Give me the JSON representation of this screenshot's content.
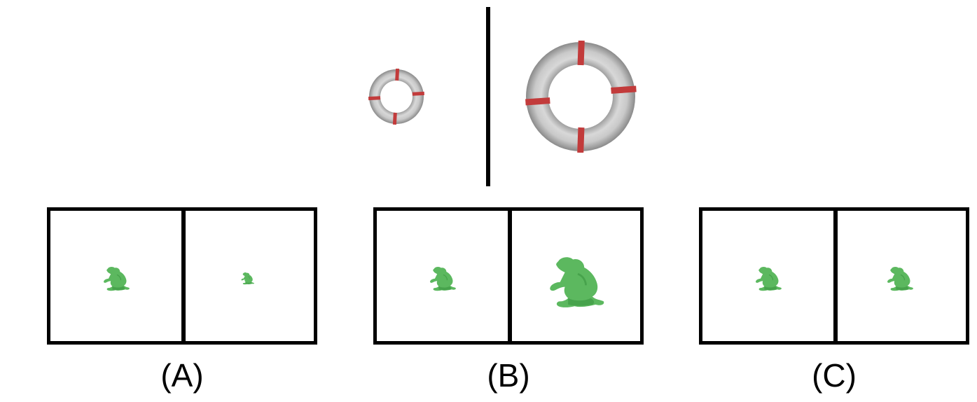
{
  "options": [
    {
      "label": "(A)",
      "left_scale": 1.0,
      "right_scale": 0.5
    },
    {
      "label": "(B)",
      "left_scale": 1.0,
      "right_scale": 2.1
    },
    {
      "label": "(C)",
      "left_scale": 1.0,
      "right_scale": 1.0
    }
  ],
  "reference": {
    "left_icon": "small-torus-icon",
    "right_icon": "large-torus-icon"
  },
  "colors": {
    "frog": "#5cb85f",
    "frog_dark": "#3f9a45",
    "torus": "#c4c4c4",
    "torus_dark": "#8e8e8e",
    "torus_band": "#c23b3b",
    "frame": "#000000"
  }
}
